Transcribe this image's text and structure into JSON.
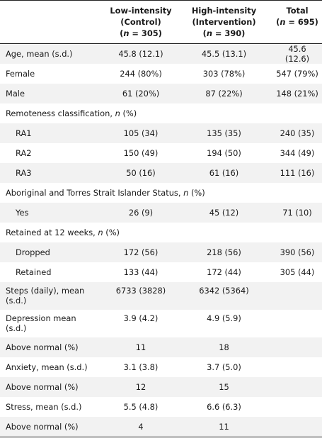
{
  "header": {
    "col1": [
      "Low-intensity",
      "(Control)",
      "(n = 305)"
    ],
    "col2": [
      "High-intensity",
      "(Intervention)",
      "(n = 390)"
    ],
    "col3": [
      "Total",
      "(n = 695)"
    ]
  },
  "rows": [
    {
      "label": "Age, mean (s.d.)",
      "v1": "45.8 (12.1)",
      "v2": "45.5 (13.1)",
      "v3": "45.6 (12.6)"
    },
    {
      "label": "Female",
      "v1": "244 (80%)",
      "v2": "303 (78%)",
      "v3": "547 (79%)"
    },
    {
      "label": "Male",
      "v1": "61 (20%)",
      "v2": "87 (22%)",
      "v3": "148 (21%)"
    },
    {
      "label": "Remoteness classification, n (%)",
      "v1": "",
      "v2": "",
      "v3": ""
    },
    {
      "label": "RA1",
      "v1": "105 (34)",
      "v2": "135 (35)",
      "v3": "240 (35)"
    },
    {
      "label": "RA2",
      "v1": "150 (49)",
      "v2": "194 (50)",
      "v3": "344 (49)"
    },
    {
      "label": "RA3",
      "v1": "50 (16)",
      "v2": "61 (16)",
      "v3": "111 (16)"
    },
    {
      "label": "Aboriginal and Torres Strait Islander Status, n (%)",
      "v1": "",
      "v2": "",
      "v3": ""
    },
    {
      "label": "Yes",
      "v1": "26 (9)",
      "v2": "45 (12)",
      "v3": "71 (10)"
    },
    {
      "label": "Retained at 12 weeks, n (%)",
      "v1": "",
      "v2": "",
      "v3": ""
    },
    {
      "label": "Dropped",
      "v1": "172 (56)",
      "v2": "218 (56)",
      "v3": "390 (56)"
    },
    {
      "label": "Retained",
      "v1": "133 (44)",
      "v2": "172 (44)",
      "v3": "305 (44)"
    },
    {
      "label": "Steps (daily), mean (s.d.)",
      "v1": "6733 (3828)",
      "v2": "6342 (5364)",
      "v3": ""
    },
    {
      "label": "Depression mean (s.d.)",
      "v1": "3.9 (4.2)",
      "v2": "4.9 (5.9)",
      "v3": ""
    },
    {
      "label": "Above normal (%)",
      "v1": "11",
      "v2": "18",
      "v3": ""
    },
    {
      "label": "Anxiety, mean (s.d.)",
      "v1": "3.1 (3.8)",
      "v2": "3.7 (5.0)",
      "v3": ""
    },
    {
      "label": "Above normal (%)",
      "v1": "12",
      "v2": "15",
      "v3": ""
    },
    {
      "label": "Stress, mean (s.d.)",
      "v1": "5.5 (4.8)",
      "v2": "6.6 (6.3)",
      "v3": ""
    },
    {
      "label": "Above normal (%)",
      "v1": "4",
      "v2": "11",
      "v3": ""
    }
  ]
}
